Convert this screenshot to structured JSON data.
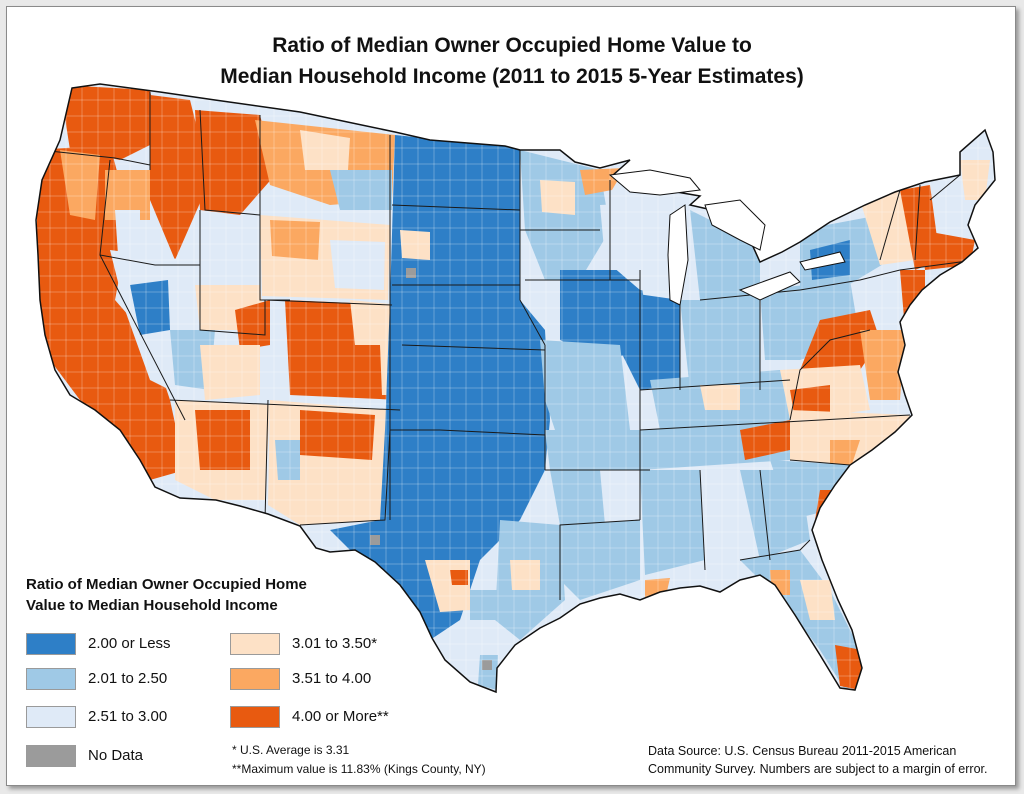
{
  "title": {
    "line1": "Ratio of Median Owner Occupied Home Value to",
    "line2": "Median Household Income (2011 to 2015 5-Year Estimates)"
  },
  "legend": {
    "title_line1": "Ratio of Median Owner Occupied Home",
    "title_line2": "Value to Median Household Income",
    "items": [
      {
        "label": "2.00 or Less",
        "color": "#2e7fc7"
      },
      {
        "label": "2.01 to 2.50",
        "color": "#9fc9e6"
      },
      {
        "label": "2.51 to 3.00",
        "color": "#dfeaf7"
      },
      {
        "label": "3.01 to 3.50*",
        "color": "#fde1c6"
      },
      {
        "label": "3.51 to 4.00",
        "color": "#fba861"
      },
      {
        "label": "4.00 or More**",
        "color": "#e85a10"
      },
      {
        "label": "No Data",
        "color": "#9b9b9b"
      }
    ]
  },
  "notes": {
    "average": "*  U.S. Average is 3.31",
    "maximum": "**Maximum value is 11.83% (Kings County, NY)"
  },
  "source": {
    "line1": "Data Source: U.S. Census Bureau 2011-2015 American",
    "line2": "Community Survey. Numbers are subject to a margin of error."
  }
}
